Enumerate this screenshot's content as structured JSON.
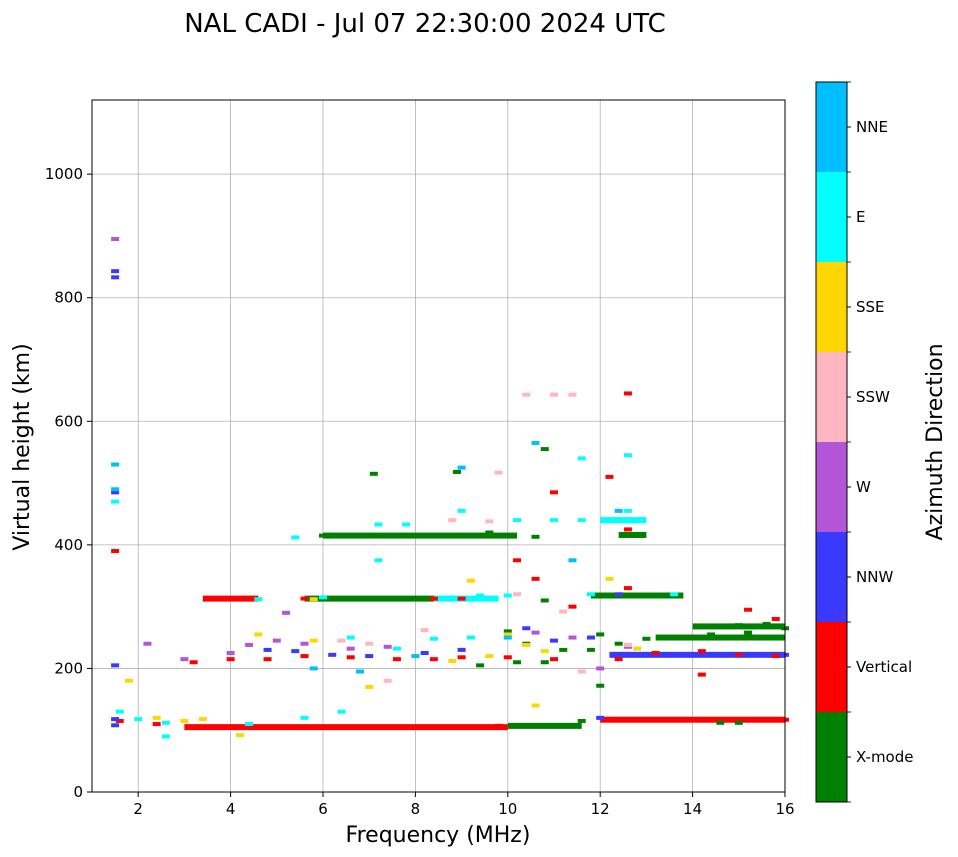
{
  "chart_data": {
    "type": "scatter",
    "title": "NAL CADI - Jul 07 22:30:00 2024 UTC",
    "xlabel": "Frequency (MHz)",
    "ylabel": "Virtual height (km)",
    "xlim": [
      1,
      16
    ],
    "ylim": [
      0,
      1120
    ],
    "xticks": [
      2,
      4,
      6,
      8,
      10,
      12,
      14,
      16
    ],
    "yticks": [
      0,
      200,
      400,
      600,
      800,
      1000
    ],
    "grid": true,
    "colorbar": {
      "label": "Azimuth Direction",
      "categories": [
        {
          "name": "X-mode",
          "color": "#008000"
        },
        {
          "name": "Vertical",
          "color": "#ff0000"
        },
        {
          "name": "NNW",
          "color": "#3a3aff"
        },
        {
          "name": "W",
          "color": "#b455d8"
        },
        {
          "name": "SSW",
          "color": "#ffb6c1"
        },
        {
          "name": "SSE",
          "color": "#ffd700"
        },
        {
          "name": "E",
          "color": "#00ffff"
        },
        {
          "name": "NNE",
          "color": "#00bfff"
        }
      ]
    },
    "series": [
      {
        "name": "X-mode",
        "points": [
          [
            6.0,
            415
          ],
          [
            6.6,
            415
          ],
          [
            7.2,
            415
          ],
          [
            8.6,
            415
          ],
          [
            9.2,
            415
          ],
          [
            9.8,
            415
          ],
          [
            10.6,
            413
          ],
          [
            12.8,
            415
          ],
          [
            5.8,
            313
          ],
          [
            6.6,
            313
          ],
          [
            7.4,
            313
          ],
          [
            8.1,
            312
          ],
          [
            10.8,
            310
          ],
          [
            12.0,
            318
          ],
          [
            12.8,
            318
          ],
          [
            14.4,
            268
          ],
          [
            15.0,
            270
          ],
          [
            15.6,
            272
          ],
          [
            16.0,
            265
          ],
          [
            14.4,
            255
          ],
          [
            15.2,
            258
          ],
          [
            15.8,
            250
          ],
          [
            10.4,
            108
          ],
          [
            11.0,
            108
          ],
          [
            11.6,
            115
          ],
          [
            14.6,
            112
          ],
          [
            15.0,
            112
          ],
          [
            10.0,
            260
          ],
          [
            10.4,
            240
          ],
          [
            11.2,
            230
          ],
          [
            10.8,
            210
          ],
          [
            12.0,
            255
          ],
          [
            12.0,
            172
          ],
          [
            9.6,
            420
          ],
          [
            8.9,
            518
          ],
          [
            7.1,
            515
          ],
          [
            10.8,
            555
          ],
          [
            9.4,
            205
          ],
          [
            10.2,
            210
          ],
          [
            11.8,
            230
          ],
          [
            12.4,
            240
          ],
          [
            13.0,
            248
          ]
        ]
      },
      {
        "name": "Vertical",
        "points": [
          [
            3.2,
            105
          ],
          [
            3.8,
            105
          ],
          [
            4.4,
            105
          ],
          [
            5.0,
            105
          ],
          [
            5.6,
            105
          ],
          [
            6.2,
            105
          ],
          [
            6.8,
            105
          ],
          [
            7.4,
            105
          ],
          [
            8.0,
            105
          ],
          [
            8.6,
            105
          ],
          [
            9.2,
            105
          ],
          [
            9.8,
            107
          ],
          [
            12.4,
            117
          ],
          [
            13.2,
            117
          ],
          [
            14.0,
            117
          ],
          [
            14.8,
            117
          ],
          [
            15.6,
            117
          ],
          [
            16.0,
            117
          ],
          [
            3.6,
            313
          ],
          [
            4.2,
            313
          ],
          [
            5.6,
            313
          ],
          [
            8.4,
            313
          ],
          [
            9.0,
            313
          ],
          [
            12.6,
            645
          ],
          [
            12.6,
            425
          ],
          [
            12.6,
            330
          ],
          [
            15.2,
            295
          ],
          [
            15.8,
            280
          ],
          [
            14.2,
            228
          ],
          [
            15.0,
            222
          ],
          [
            15.8,
            220
          ],
          [
            13.2,
            225
          ],
          [
            12.4,
            215
          ],
          [
            3.2,
            210
          ],
          [
            4.0,
            215
          ],
          [
            4.8,
            215
          ],
          [
            5.6,
            220
          ],
          [
            6.6,
            218
          ],
          [
            7.6,
            215
          ],
          [
            8.4,
            215
          ],
          [
            9.0,
            218
          ],
          [
            10.0,
            218
          ],
          [
            11.0,
            215
          ],
          [
            10.2,
            375
          ],
          [
            10.6,
            345
          ],
          [
            11.4,
            300
          ],
          [
            1.5,
            390
          ],
          [
            12.2,
            510
          ],
          [
            11.0,
            485
          ],
          [
            14.2,
            190
          ],
          [
            2.4,
            110
          ],
          [
            1.6,
            115
          ]
        ]
      },
      {
        "name": "NNW",
        "points": [
          [
            1.5,
            843
          ],
          [
            1.5,
            833
          ],
          [
            1.5,
            485
          ],
          [
            1.5,
            108
          ],
          [
            1.5,
            118
          ],
          [
            4.8,
            230
          ],
          [
            5.4,
            228
          ],
          [
            6.2,
            222
          ],
          [
            7.0,
            220
          ],
          [
            8.2,
            225
          ],
          [
            9.0,
            230
          ],
          [
            12.6,
            222
          ],
          [
            13.4,
            222
          ],
          [
            14.4,
            222
          ],
          [
            15.4,
            222
          ],
          [
            16.0,
            222
          ],
          [
            12.0,
            120
          ],
          [
            11.0,
            245
          ],
          [
            11.8,
            250
          ],
          [
            10.4,
            265
          ],
          [
            12.4,
            320
          ],
          [
            1.5,
            205
          ]
        ]
      },
      {
        "name": "W",
        "points": [
          [
            1.5,
            895
          ],
          [
            4.4,
            238
          ],
          [
            5.0,
            245
          ],
          [
            5.6,
            240
          ],
          [
            6.6,
            232
          ],
          [
            7.4,
            235
          ],
          [
            4.0,
            225
          ],
          [
            3.0,
            215
          ],
          [
            12.0,
            200
          ],
          [
            12.6,
            235
          ],
          [
            10.6,
            258
          ],
          [
            11.4,
            250
          ],
          [
            2.2,
            240
          ],
          [
            5.2,
            290
          ]
        ]
      },
      {
        "name": "SSW",
        "points": [
          [
            10.4,
            643
          ],
          [
            11.0,
            643
          ],
          [
            11.4,
            643
          ],
          [
            9.6,
            438
          ],
          [
            8.8,
            440
          ],
          [
            10.2,
            320
          ],
          [
            11.2,
            292
          ],
          [
            12.6,
            238
          ],
          [
            8.2,
            262
          ],
          [
            7.0,
            240
          ],
          [
            6.4,
            245
          ],
          [
            11.6,
            195
          ],
          [
            9.8,
            517
          ],
          [
            7.4,
            180
          ]
        ]
      },
      {
        "name": "SSE",
        "points": [
          [
            2.4,
            120
          ],
          [
            3.0,
            115
          ],
          [
            3.4,
            118
          ],
          [
            5.8,
            312
          ],
          [
            10.0,
            255
          ],
          [
            10.4,
            238
          ],
          [
            10.8,
            228
          ],
          [
            9.6,
            220
          ],
          [
            8.8,
            212
          ],
          [
            12.2,
            345
          ],
          [
            12.8,
            232
          ],
          [
            4.6,
            255
          ],
          [
            5.8,
            245
          ],
          [
            9.2,
            342
          ],
          [
            1.8,
            180
          ],
          [
            7.0,
            170
          ],
          [
            4.2,
            92
          ],
          [
            10.6,
            140
          ]
        ]
      },
      {
        "name": "E",
        "points": [
          [
            1.5,
            470
          ],
          [
            1.6,
            130
          ],
          [
            2.0,
            118
          ],
          [
            2.6,
            112
          ],
          [
            7.2,
            433
          ],
          [
            7.8,
            433
          ],
          [
            9.0,
            455
          ],
          [
            10.2,
            440
          ],
          [
            11.0,
            440
          ],
          [
            11.6,
            440
          ],
          [
            12.4,
            440
          ],
          [
            12.8,
            440
          ],
          [
            12.6,
            455
          ],
          [
            9.4,
            318
          ],
          [
            10.0,
            318
          ],
          [
            11.8,
            320
          ],
          [
            13.6,
            320
          ],
          [
            4.6,
            312
          ],
          [
            6.0,
            315
          ],
          [
            11.6,
            540
          ],
          [
            12.6,
            545
          ],
          [
            6.6,
            250
          ],
          [
            7.6,
            232
          ],
          [
            8.4,
            248
          ],
          [
            9.2,
            250
          ],
          [
            4.4,
            110
          ],
          [
            5.6,
            120
          ],
          [
            6.4,
            130
          ],
          [
            7.2,
            375
          ],
          [
            5.4,
            412
          ],
          [
            2.6,
            90
          ]
        ]
      },
      {
        "name": "NNE",
        "points": [
          [
            1.5,
            530
          ],
          [
            1.5,
            490
          ],
          [
            12.4,
            455
          ],
          [
            10.6,
            565
          ],
          [
            11.4,
            375
          ],
          [
            9.0,
            525
          ],
          [
            5.8,
            200
          ],
          [
            6.8,
            195
          ],
          [
            10.0,
            250
          ],
          [
            8.0,
            220
          ]
        ]
      }
    ]
  }
}
